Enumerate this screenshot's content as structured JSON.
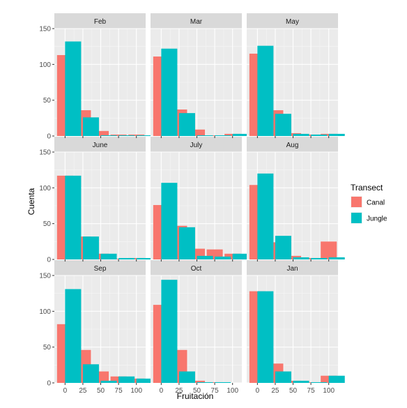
{
  "chart_data": {
    "type": "bar",
    "layout": "faceted-3x3",
    "xlabel": "Fruitación",
    "ylabel": "Cuenta",
    "ylim": [
      0,
      150
    ],
    "y_ticks": [
      0,
      50,
      100,
      150
    ],
    "x_ticks": [
      0,
      25,
      50,
      75,
      100
    ],
    "x_range": [
      -15,
      113
    ],
    "bar_positions": [
      0,
      25,
      50,
      75,
      100
    ],
    "legend": {
      "title": "Transect",
      "position": "right",
      "entries": [
        {
          "name": "Canal",
          "color": "#F8766D"
        },
        {
          "name": "Jungle",
          "color": "#00BFC4"
        }
      ]
    },
    "grid": true,
    "panel_background": "#EBEBEB",
    "strip_background": "#D9D9D9",
    "facets": [
      {
        "label": "Feb",
        "series": [
          {
            "name": "Canal",
            "values": [
              113,
              36,
              7,
              2,
              2
            ]
          },
          {
            "name": "Jungle",
            "values": [
              132,
              26,
              1,
              1,
              1
            ]
          }
        ]
      },
      {
        "label": "Mar",
        "series": [
          {
            "name": "Canal",
            "values": [
              111,
              37,
              9,
              1,
              3
            ]
          },
          {
            "name": "Jungle",
            "values": [
              122,
              32,
              1,
              1,
              3
            ]
          }
        ]
      },
      {
        "label": "May",
        "series": [
          {
            "name": "Canal",
            "values": [
              115,
              36,
              4,
              2,
              3
            ]
          },
          {
            "name": "Jungle",
            "values": [
              126,
              31,
              3,
              2,
              3
            ]
          }
        ]
      },
      {
        "label": "June",
        "series": [
          {
            "name": "Canal",
            "values": [
              117,
              32,
              8,
              1,
              2
            ]
          },
          {
            "name": "Jungle",
            "values": [
              117,
              32,
              8,
              2,
              2
            ]
          }
        ]
      },
      {
        "label": "July",
        "series": [
          {
            "name": "Canal",
            "values": [
              76,
              47,
              15,
              14,
              8
            ]
          },
          {
            "name": "Jungle",
            "values": [
              107,
              45,
              5,
              4,
              8
            ]
          }
        ]
      },
      {
        "label": "Aug",
        "series": [
          {
            "name": "Canal",
            "values": [
              104,
              24,
              5,
              2,
              25
            ]
          },
          {
            "name": "Jungle",
            "values": [
              120,
              33,
              3,
              2,
              3
            ]
          }
        ]
      },
      {
        "label": "Sep",
        "series": [
          {
            "name": "Canal",
            "values": [
              82,
              46,
              16,
              9,
              6
            ]
          },
          {
            "name": "Jungle",
            "values": [
              131,
              26,
              3,
              9,
              6
            ]
          }
        ]
      },
      {
        "label": "Oct",
        "series": [
          {
            "name": "Canal",
            "values": [
              109,
              46,
              3,
              1,
              0
            ]
          },
          {
            "name": "Jungle",
            "values": [
              144,
              16,
              1,
              1,
              0
            ]
          }
        ]
      },
      {
        "label": "Jan",
        "series": [
          {
            "name": "Canal",
            "values": [
              128,
              27,
              3,
              1,
              10
            ]
          },
          {
            "name": "Jungle",
            "values": [
              128,
              16,
              3,
              1,
              10
            ]
          }
        ]
      }
    ]
  }
}
